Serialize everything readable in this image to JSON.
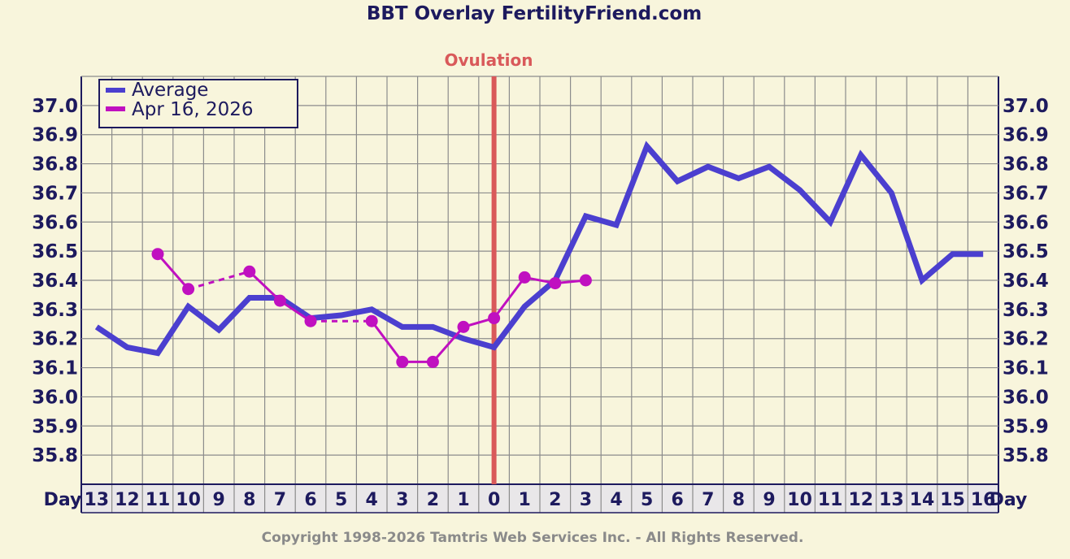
{
  "colors": {
    "background": "#f8f5dc",
    "grid": "#8c8c8c",
    "text": "#1d1a5e",
    "average": "#4b3fcf",
    "cycle": "#c010c0",
    "ovulation": "#d9595a",
    "copyright": "#8a8a8a",
    "axis_band": "#e9e7e9"
  },
  "chart_data": {
    "type": "line",
    "title": "BBT Overlay FertilityFriend.com",
    "ovulation_label": "Ovulation",
    "ovulation_day": 0,
    "axis_label_left": "Day",
    "axis_label_right": "Day",
    "x": [
      -13,
      -12,
      -11,
      -10,
      -9,
      -8,
      -7,
      -6,
      -5,
      -4,
      -3,
      -2,
      -1,
      0,
      1,
      2,
      3,
      4,
      5,
      6,
      7,
      8,
      9,
      10,
      11,
      12,
      13,
      14,
      15,
      16
    ],
    "x_tick_labels": [
      "13",
      "12",
      "11",
      "10",
      "9",
      "8",
      "7",
      "6",
      "5",
      "4",
      "3",
      "2",
      "1",
      "0",
      "1",
      "2",
      "3",
      "4",
      "5",
      "6",
      "7",
      "8",
      "9",
      "10",
      "11",
      "12",
      "13",
      "14",
      "15",
      "16"
    ],
    "ylim": [
      35.7,
      37.1
    ],
    "y_ticks": [
      "35.8",
      "35.9",
      "36.0",
      "36.1",
      "36.2",
      "36.3",
      "36.4",
      "36.5",
      "36.6",
      "36.7",
      "36.8",
      "36.9",
      "37.0"
    ],
    "legend": [
      "Average",
      "Apr 16, 2026"
    ],
    "series": [
      {
        "name": "Average",
        "values": [
          36.24,
          36.17,
          36.15,
          36.31,
          36.23,
          36.34,
          36.34,
          36.27,
          36.28,
          36.3,
          36.24,
          36.24,
          36.2,
          36.17,
          36.31,
          36.4,
          36.62,
          36.59,
          36.86,
          36.74,
          36.79,
          36.75,
          36.79,
          36.71,
          36.6,
          36.83,
          36.7,
          36.4,
          36.49,
          36.49
        ]
      },
      {
        "name": "Apr 16, 2026",
        "values": [
          null,
          null,
          36.49,
          36.37,
          null,
          36.43,
          36.33,
          36.26,
          null,
          36.26,
          36.12,
          36.12,
          36.24,
          36.27,
          36.41,
          36.39,
          36.4,
          null,
          null,
          null,
          null,
          null,
          null,
          null,
          null,
          null,
          null,
          null,
          null,
          null
        ]
      }
    ]
  },
  "copyright": "Copyright 1998-2026 Tamtris Web Services Inc. - All Rights Reserved."
}
